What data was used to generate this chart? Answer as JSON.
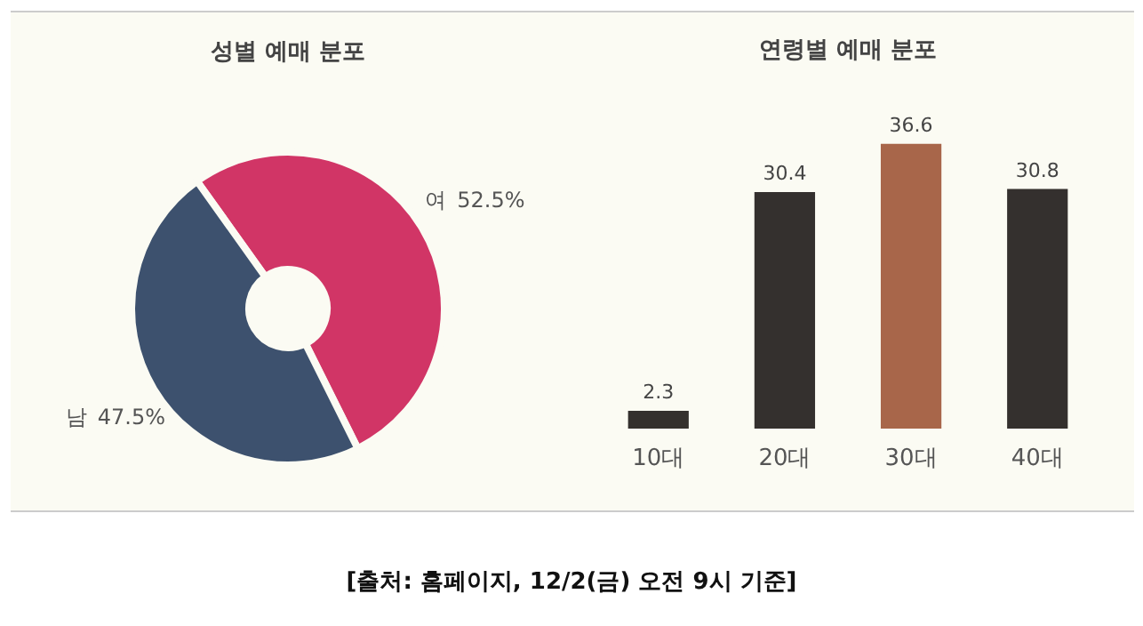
{
  "chart_data": [
    {
      "type": "donut",
      "title": "성별 예매 분포",
      "categories": [
        "여",
        "남"
      ],
      "values": [
        52.5,
        47.5
      ],
      "colors": [
        "#d13566",
        "#3d516e"
      ],
      "value_labels": [
        "52.5%",
        "47.5%"
      ],
      "annotations": [
        "[출처: 홈페이지, 12/2(금) 오전 9시 기준]"
      ]
    },
    {
      "type": "bar",
      "title": "연령별 예매 분포",
      "categories": [
        "10대",
        "20대",
        "30대",
        "40대"
      ],
      "values": [
        2.3,
        30.4,
        36.6,
        30.8
      ],
      "colors": [
        "#34302e",
        "#34302e",
        "#a8664a",
        "#34302e"
      ],
      "data_labels": true
    }
  ]
}
